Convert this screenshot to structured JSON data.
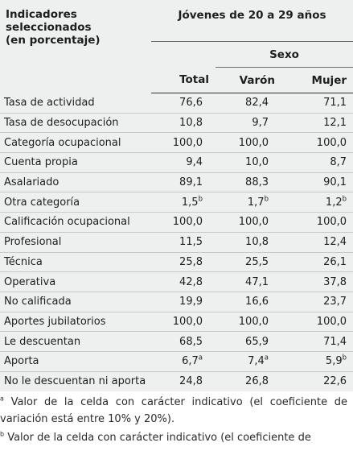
{
  "header": {
    "left_title": "Indicadores\nseleccionados\n(en porcentaje)",
    "group_title": "Jóvenes de 20 a 29 años",
    "sub_group_title": "Sexo",
    "col_total": "Total",
    "col_varon": "Varón",
    "col_mujer": "Mujer"
  },
  "rows": [
    {
      "label": "Tasa de actividad",
      "total": "76,6",
      "varon": "82,4",
      "mujer": "71,1",
      "bold": true,
      "sep": false
    },
    {
      "label": "Tasa de desocupación",
      "total": "10,8",
      "varon": "9,7",
      "mujer": "12,1",
      "bold": true,
      "sep": true
    },
    {
      "label": "Categoría ocupacional",
      "total": "100,0",
      "varon": "100,0",
      "mujer": "100,0",
      "bold": true,
      "sep": true
    },
    {
      "label": "Cuenta propia",
      "total": "9,4",
      "varon": "10,0",
      "mujer": "8,7",
      "bold": false,
      "sep": true
    },
    {
      "label": "Asalariado",
      "total": "89,1",
      "varon": "88,3",
      "mujer": "90,1",
      "bold": false,
      "sep": true
    },
    {
      "label": "Otra categoría",
      "total": "1,5",
      "total_sup": "b",
      "varon": "1,7",
      "varon_sup": "b",
      "mujer": "1,2",
      "mujer_sup": "b",
      "bold": false,
      "sep": true
    },
    {
      "label": "Calificación ocupacional",
      "total": "100,0",
      "varon": "100,0",
      "mujer": "100,0",
      "bold": true,
      "sep": true
    },
    {
      "label": "Profesional",
      "total": "11,5",
      "varon": "10,8",
      "mujer": "12,4",
      "bold": false,
      "sep": true
    },
    {
      "label": "Técnica",
      "total": "25,8",
      "varon": "25,5",
      "mujer": "26,1",
      "bold": false,
      "sep": true
    },
    {
      "label": "Operativa",
      "total": "42,8",
      "varon": "47,1",
      "mujer": "37,8",
      "bold": false,
      "sep": true
    },
    {
      "label": "No calificada",
      "total": "19,9",
      "varon": "16,6",
      "mujer": "23,7",
      "bold": false,
      "sep": true
    },
    {
      "label": "Aportes jubilatorios",
      "total": "100,0",
      "varon": "100,0",
      "mujer": "100,0",
      "bold": true,
      "sep": true
    },
    {
      "label": "Le descuentan",
      "total": "68,5",
      "varon": "65,9",
      "mujer": "71,4",
      "bold": false,
      "sep": true
    },
    {
      "label": "Aporta",
      "total": "6,7",
      "total_sup": "a",
      "varon": "7,4",
      "varon_sup": "a",
      "mujer": "5,9",
      "mujer_sup": "b",
      "bold": false,
      "sep": true
    },
    {
      "label": "No le descuentan ni aporta",
      "total": "24,8",
      "varon": "26,8",
      "mujer": "22,6",
      "bold": false,
      "sep": true
    }
  ],
  "notes": {
    "note_a_marker": "a",
    "note_a_text": " Valor de la celda con carácter indicativo (el coeficiente de variación está entre 10% y 20%).",
    "note_b_marker": "b",
    "note_b_text": " Valor de la celda con carácter indicativo (el coeficiente de"
  }
}
